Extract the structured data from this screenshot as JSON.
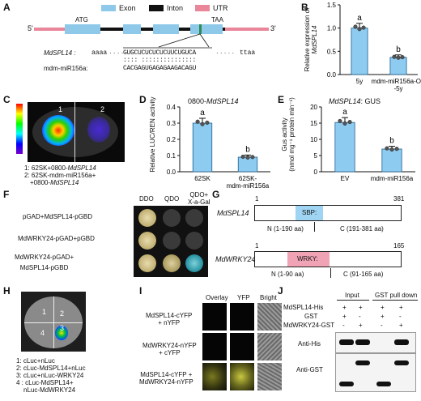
{
  "panels": {
    "a": "A",
    "b": "B",
    "c": "C",
    "d": "D",
    "e": "E",
    "f": "F",
    "g": "G",
    "h": "H",
    "i": "I",
    "j": "J"
  },
  "legend_a": {
    "exon": "Exon",
    "intron": "Inton",
    "utr": "UTR"
  },
  "gene_a": {
    "five": "5'",
    "three": "3'",
    "atg": "ATG",
    "taa": "TAA",
    "mdspl14_label": "MdSPL14 :",
    "mdspl14_left": "aaaa",
    "mdspl14_seq": "GUGCUCUCUCUCUUCUGUCA",
    "mdspl14_right": "ttaa",
    "mir_label": "mdm-miR156a:",
    "mir_seq": "CACGAGUGAGAGAAGACAGU"
  },
  "colors": {
    "exon": "#8ec9ea",
    "utr": "#e9869a",
    "bar": "#8ecbf0",
    "site": "#2e8b57",
    "sbp": "#9fd4f2",
    "wrky": "#f0a3b4"
  },
  "chart_b": {
    "ylabel": "Relative expression of",
    "ylabel_gene": "MdSPL14",
    "categories": [
      "5y",
      "mdm-miR156a-OE\n-5y"
    ],
    "values": [
      1.0,
      0.37
    ],
    "letters": [
      "a",
      "b"
    ],
    "ticks": [
      "0.0",
      "0.5",
      "1.0",
      "1.5"
    ],
    "ylim": [
      0,
      1.5
    ]
  },
  "panel_c": {
    "scale_max": "Max",
    "scale_min": "Min",
    "zone1": "1",
    "zone2": "2",
    "note1": "1: 62SK+0800-",
    "note1_gene": "MdSPL14",
    "note2": "2: 62SK-mdm-miR156a+",
    "note3": "+0800-",
    "note3_gene": "MdSPL14"
  },
  "chart_d": {
    "title": "0800-",
    "title_gene": "MdSPL14",
    "ylabel": "Relative LUC/REN activity",
    "categories": [
      "62SK",
      "62SK-\nmdm-miR156a"
    ],
    "values": [
      0.3,
      0.09
    ],
    "letters": [
      "a",
      "b"
    ],
    "ticks": [
      "0.0",
      "0.1",
      "0.2",
      "0.3",
      "0.4"
    ],
    "ylim": [
      0,
      0.4
    ]
  },
  "chart_e": {
    "title_gene": "MdSPL14",
    "title_rest": ": GUS",
    "ylabel": "Gus activity",
    "ylabel2": "(nmol mg⁻¹ protein min⁻¹)",
    "categories": [
      "EV",
      "mdm-miR156a"
    ],
    "values": [
      15.2,
      7.0
    ],
    "letters": [
      "a",
      "b"
    ],
    "ticks": [
      "0",
      "5",
      "10",
      "15",
      "20"
    ],
    "ylim": [
      0,
      20
    ]
  },
  "panel_f": {
    "cols": [
      "DDO",
      "QDO",
      "QDO+\nX-a-Gal"
    ],
    "rows": [
      "pGAD+MdSPL14-pGBD",
      "MdWRKY24-pGAD+pGBD",
      "MdWRKY24-pGAD+\nMdSPL14-pGBD"
    ]
  },
  "panel_g": {
    "p1": {
      "name": "MdSPL14",
      "start": "1",
      "end": "381",
      "domain": "SBP:",
      "n": "N (1-190 aa)",
      "c": "C (191-381 aa)"
    },
    "p2": {
      "name": "MdWRKY24",
      "start": "1",
      "end": "165",
      "domain": "WRKY:",
      "n": "N (1-90 aa)",
      "c": "C (91-165 aa)"
    }
  },
  "panel_h": {
    "zones": [
      "1",
      "2",
      "3",
      "4"
    ],
    "items": [
      "1: cLuc+nLuc",
      "2: cLuc-MdSPL14+nLuc",
      "3: cLuc+nLuc-WRKY24",
      "4 : cLuc-MdSPL14+",
      "nLuc-MdWRKY24"
    ]
  },
  "panel_i": {
    "cols": [
      "Overlay",
      "YFP",
      "Bright"
    ],
    "rows": [
      "MdSPL14-cYFP\n+ nYFP",
      "MdWRKY24-nYFP\n+ cYFP",
      "MdSPL14-cYFP +\nMdWRKY24-nYFP"
    ]
  },
  "panel_j": {
    "input": "Input",
    "pulldown": "GST pull down",
    "rows": [
      {
        "label": "MdSPL14-His",
        "marks": [
          "+",
          "+",
          "+",
          "+"
        ]
      },
      {
        "label": "GST",
        "marks": [
          "+",
          "-",
          "+",
          "-"
        ]
      },
      {
        "label": "MdWRKY24-GST",
        "marks": [
          "-",
          "+",
          "-",
          "+"
        ]
      }
    ],
    "anti_his": "Anti-His",
    "anti_gst": "Anti-GST"
  }
}
